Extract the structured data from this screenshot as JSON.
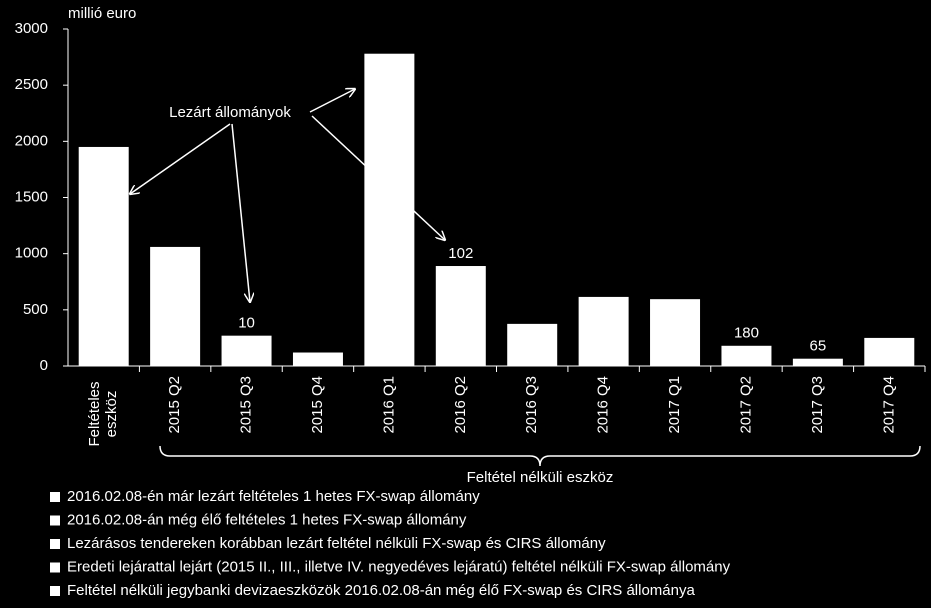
{
  "chart_data": {
    "type": "bar",
    "y_axis_label": "millió euro",
    "categories": [
      "Feltételes eszköz",
      "2015 Q2",
      "2015 Q3",
      "2015 Q4",
      "2016 Q1",
      "2016 Q2",
      "2016 Q3",
      "2016 Q4",
      "2017 Q1",
      "2017 Q2",
      "2017 Q3",
      "2017 Q4"
    ],
    "values": [
      1950,
      1060,
      270,
      120,
      2780,
      890,
      375,
      615,
      595,
      180,
      65,
      250
    ],
    "color": "#ffffff",
    "ylim": [
      0,
      3000
    ],
    "yticks": [
      0,
      500,
      1000,
      1500,
      2000,
      2500,
      3000
    ],
    "grid": false,
    "annotations": [
      {
        "text": "10",
        "category": "2015 Q3"
      },
      {
        "text": "102",
        "category": "2016 Q2"
      },
      {
        "text": "180",
        "category": "2017 Q2"
      },
      {
        "text": "65",
        "category": "2017 Q3"
      }
    ],
    "arrow_label": "Lezárt állományok",
    "group_label": "Feltétel nélküli eszköz",
    "legend": [
      "2016.02.08-én már lezárt feltételes 1 hetes FX-swap állomány",
      "2016.02.08-án még élő feltételes 1 hetes FX-swap állomány",
      "Lezárásos tendereken korábban lezárt feltétel nélküli FX-swap és CIRS állomány",
      "Eredeti lejárattal lejárt (2015 II., III., illetve IV. negyedéves lejáratú) feltétel nélküli FX-swap állomány",
      "Feltétel nélküli jegybanki devizaeszközök 2016.02.08-án még élő FX-swap és CIRS állománya"
    ]
  }
}
